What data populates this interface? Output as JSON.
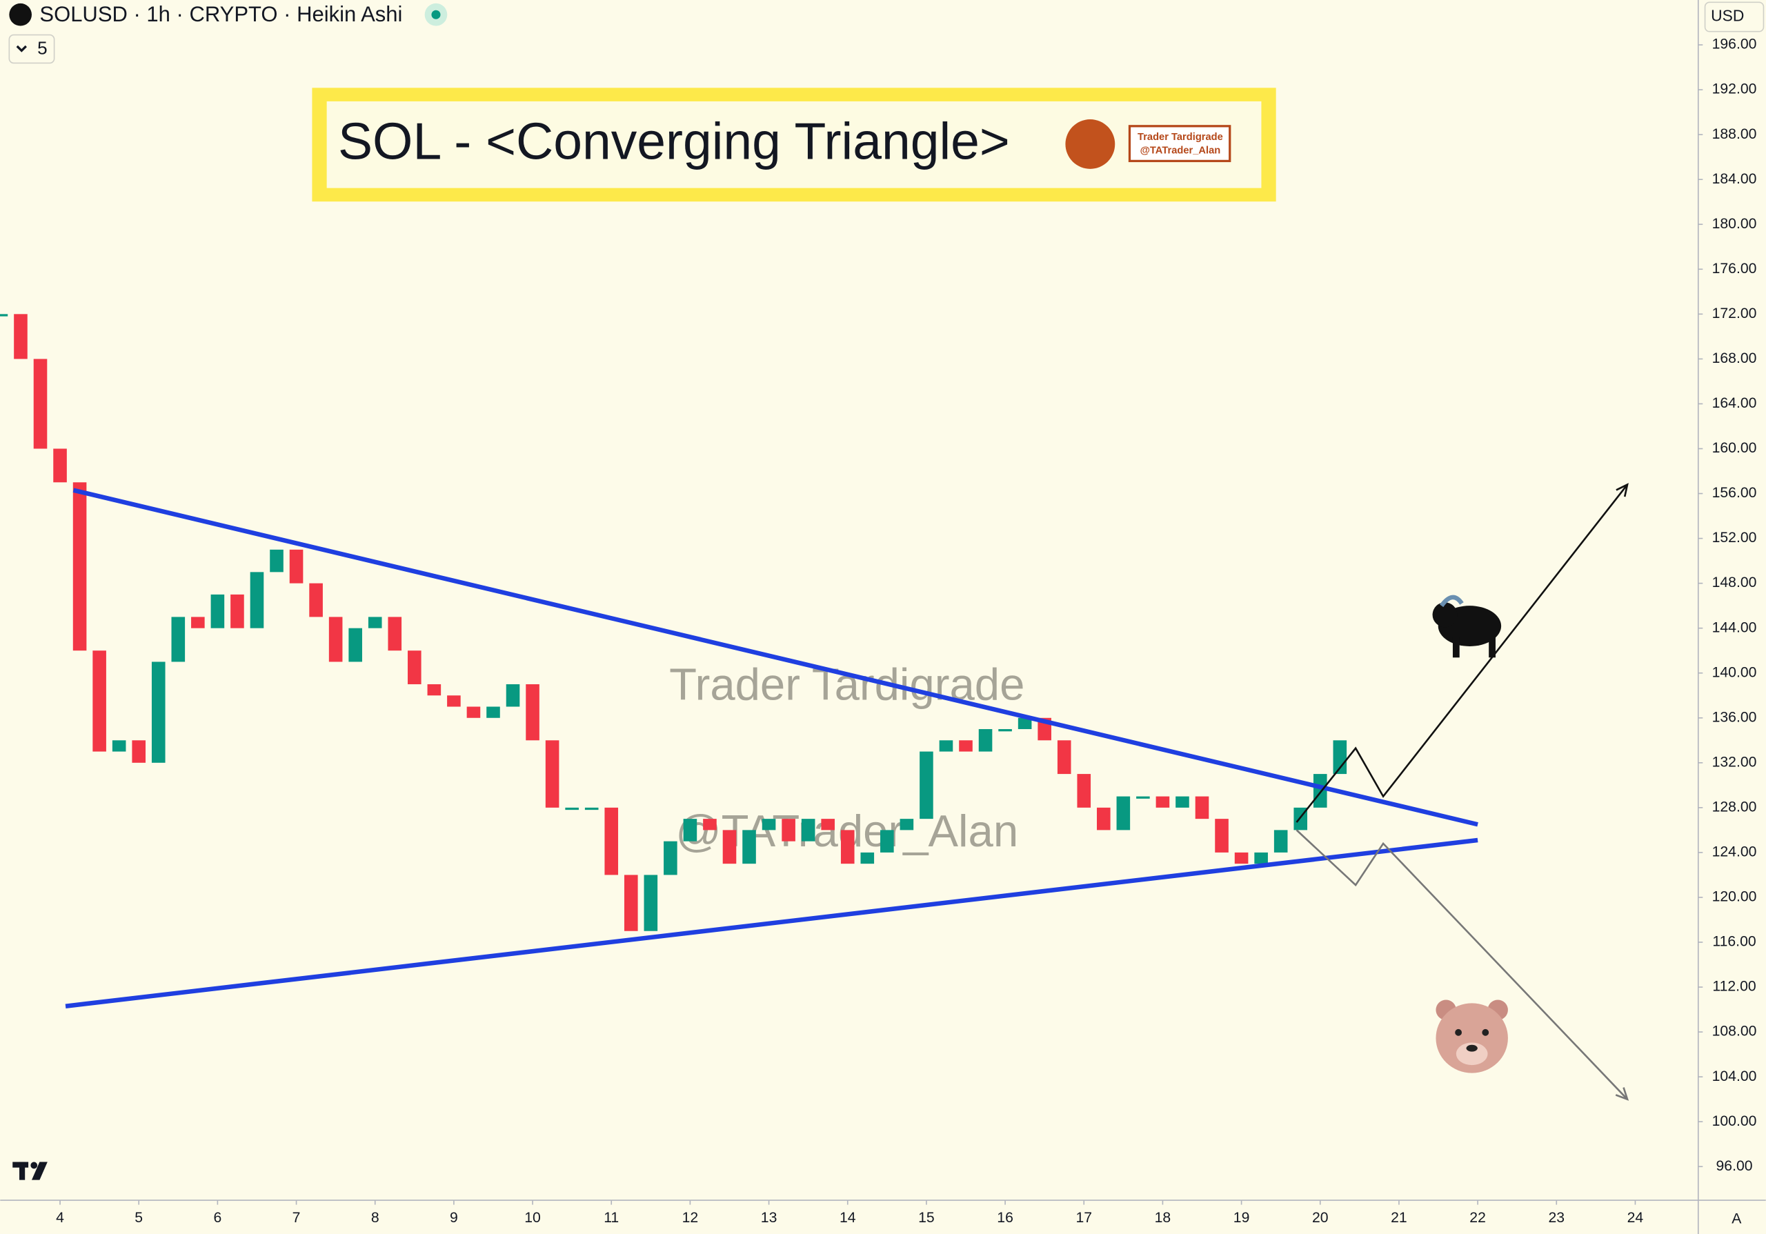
{
  "chart_data": {
    "type": "candlestick",
    "symbol": "SOLUSD · 1h · CRYPTO · Heikin Ashi",
    "interval_badge": "5",
    "currency": "USD",
    "title": "SOL - <Converging Triangle>",
    "badge_name": "Trader Tardigrade",
    "badge_handle": "@TATrader_Alan",
    "watermark_name": "Trader Tardigrade",
    "watermark_handle": "@TATrader_Alan",
    "scale_mode": "A",
    "up_color": "#089981",
    "down_color": "#f23645",
    "x": [
      3.25,
      3.5,
      3.75,
      4,
      4.25,
      4.5,
      4.75,
      5,
      5.25,
      5.5,
      5.75,
      6,
      6.25,
      6.5,
      6.75,
      7,
      7.25,
      7.5,
      7.75,
      8,
      8.25,
      8.5,
      8.75,
      9,
      9.25,
      9.5,
      9.75,
      10,
      10.25,
      10.5,
      10.75,
      11,
      11.25,
      11.5,
      11.75,
      12,
      12.25,
      12.5,
      12.75,
      13,
      13.25,
      13.5,
      13.75,
      14,
      14.25,
      14.5,
      14.75,
      15,
      15.25,
      15.5,
      15.75,
      16,
      16.25,
      16.5,
      16.75,
      17,
      17.25,
      17.5,
      17.75,
      18,
      18.25,
      18.5,
      18.75,
      19,
      19.25,
      19.5,
      19.75,
      20,
      20.25
    ],
    "values": [
      172,
      168,
      160,
      157,
      142,
      133,
      134,
      132,
      141,
      145,
      144,
      147,
      144,
      149,
      151,
      148,
      145,
      141,
      144,
      145,
      142,
      139,
      138,
      137,
      136,
      137,
      139,
      134,
      128,
      128,
      128,
      122,
      117,
      122,
      125,
      127,
      126,
      123,
      126,
      127,
      125,
      127,
      126,
      123,
      124,
      126,
      127,
      133,
      134,
      133,
      135,
      135,
      136,
      134,
      131,
      128,
      126,
      129,
      129,
      128,
      129,
      127,
      124,
      123,
      124,
      126,
      128,
      131,
      134
    ],
    "trendlines": [
      {
        "color": "#1f3fe0",
        "x": [
          4.17,
          22
        ],
        "y": [
          156.3,
          126.5
        ]
      },
      {
        "color": "#1f3fe0",
        "x": [
          4.07,
          22
        ],
        "y": [
          110.3,
          125.1
        ]
      }
    ],
    "projections": [
      {
        "color": "#111111",
        "x": [
          19.7,
          20.45,
          20.8,
          23.9
        ],
        "y": [
          126.7,
          133.3,
          129,
          156.8
        ]
      },
      {
        "color": "#777777",
        "x": [
          19.7,
          20.45,
          20.8,
          23.9
        ],
        "y": [
          126,
          121.1,
          124.8,
          102
        ]
      }
    ],
    "xlim": [
      3.24,
      24.8
    ],
    "ylim": [
      200,
      93
    ],
    "xticks": [
      4,
      5,
      6,
      7,
      8,
      9,
      10,
      11,
      12,
      13,
      14,
      15,
      16,
      17,
      18,
      19,
      20,
      21,
      22,
      23,
      24
    ],
    "yticks": [
      {
        "value": 196,
        "label": "196.00"
      },
      {
        "value": 192,
        "label": "192.00"
      },
      {
        "value": 188,
        "label": "188.00"
      },
      {
        "value": 184,
        "label": "184.00"
      },
      {
        "value": 180,
        "label": "180.00"
      },
      {
        "value": 176,
        "label": "176.00"
      },
      {
        "value": 172,
        "label": "172.00"
      },
      {
        "value": 168,
        "label": "168.00"
      },
      {
        "value": 164,
        "label": "164.00"
      },
      {
        "value": 160,
        "label": "160.00"
      },
      {
        "value": 156,
        "label": "156.00"
      },
      {
        "value": 152,
        "label": "152.00"
      },
      {
        "value": 148,
        "label": "148.00"
      },
      {
        "value": 144,
        "label": "144.00"
      },
      {
        "value": 140,
        "label": "140.00"
      },
      {
        "value": 136,
        "label": "136.00"
      },
      {
        "value": 132,
        "label": "132.00"
      },
      {
        "value": 128,
        "label": "128.00"
      },
      {
        "value": 124,
        "label": "124.00"
      },
      {
        "value": 120,
        "label": "120.00"
      },
      {
        "value": 116,
        "label": "116.00"
      },
      {
        "value": 112,
        "label": "112.00"
      },
      {
        "value": 108,
        "label": "108.00"
      },
      {
        "value": 104,
        "label": "104.00"
      },
      {
        "value": 100,
        "label": "100.00"
      },
      {
        "value": 96,
        "label": "96.00"
      }
    ]
  }
}
